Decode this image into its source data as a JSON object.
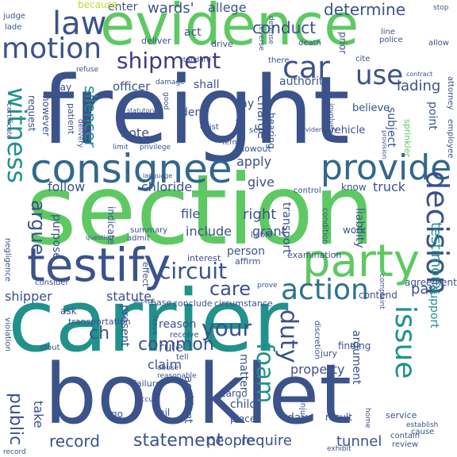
{
  "words": [
    {
      "text": "freight",
      "color": "#3b528b"
    },
    {
      "text": "section",
      "color": "#5ec962"
    },
    {
      "text": "carrier",
      "color": "#21918c"
    },
    {
      "text": "evidence",
      "color": "#5ec962"
    },
    {
      "text": "booklet",
      "color": "#3b528b"
    },
    {
      "text": "consignee",
      "color": "#31688e"
    },
    {
      "text": "testify",
      "color": "#3b528b"
    },
    {
      "text": "party",
      "color": "#5ec962"
    },
    {
      "text": "provide",
      "color": "#31688e"
    },
    {
      "text": "law",
      "color": "#3b528b"
    },
    {
      "text": "motion",
      "color": "#3b528b"
    },
    {
      "text": "shipment",
      "color": "#443983"
    },
    {
      "text": "action",
      "color": "#2c728e"
    },
    {
      "text": "issue",
      "color": "#21918c"
    },
    {
      "text": "decision",
      "color": "#3b528b"
    },
    {
      "text": "witness",
      "color": "#21918c"
    },
    {
      "text": "car",
      "color": "#3b528b"
    },
    {
      "text": "use",
      "color": "#3b528b"
    },
    {
      "text": "circuit",
      "color": "#3b528b"
    },
    {
      "text": "care",
      "color": "#3b528b"
    },
    {
      "text": "your",
      "color": "#3b528b"
    },
    {
      "text": "duty",
      "color": "#3b528b"
    },
    {
      "text": "foam",
      "color": "#21918c"
    },
    {
      "text": "argue",
      "color": "#3b528b"
    },
    {
      "text": "public",
      "color": "#3b528b"
    },
    {
      "text": "common",
      "color": "#3b528b"
    },
    {
      "text": "record",
      "color": "#3b528b"
    },
    {
      "text": "statement",
      "color": "#3b528b"
    },
    {
      "text": "people",
      "color": "#3b528b"
    },
    {
      "text": "require",
      "color": "#3b528b"
    },
    {
      "text": "tunnel",
      "color": "#3b528b"
    },
    {
      "text": "conduct",
      "color": "#3b528b"
    },
    {
      "text": "determine",
      "color": "#3b528b"
    },
    {
      "text": "wards'",
      "color": "#3b528b"
    },
    {
      "text": "allege",
      "color": "#3b528b"
    },
    {
      "text": "enter",
      "color": "#3b528b"
    },
    {
      "text": "because",
      "color": "#bddf26"
    },
    {
      "text": "lading",
      "color": "#3b528b"
    },
    {
      "text": "silencer",
      "color": "#21918c"
    },
    {
      "text": "officer",
      "color": "#3b528b"
    },
    {
      "text": "authority",
      "color": "#3b528b"
    },
    {
      "text": "shall",
      "color": "#3b528b"
    },
    {
      "text": "note",
      "color": "#3b528b"
    },
    {
      "text": "apply",
      "color": "#3b528b"
    },
    {
      "text": "charge",
      "color": "#3b528b"
    },
    {
      "text": "chloride",
      "color": "#3b528b"
    },
    {
      "text": "follow",
      "color": "#3b528b"
    },
    {
      "text": "give",
      "color": "#3b528b"
    },
    {
      "text": "truck",
      "color": "#3b528b"
    },
    {
      "text": "right",
      "color": "#3b528b"
    },
    {
      "text": "file",
      "color": "#3b528b"
    },
    {
      "text": "include",
      "color": "#3b528b"
    },
    {
      "text": "grant",
      "color": "#3b528b"
    },
    {
      "text": "testimony",
      "color": "#21918c"
    },
    {
      "text": "transport",
      "color": "#3b528b"
    },
    {
      "text": "liability",
      "color": "#3b528b"
    },
    {
      "text": "support",
      "color": "#21918c"
    },
    {
      "text": "shipper",
      "color": "#3b528b"
    },
    {
      "text": "statute",
      "color": "#3b528b"
    },
    {
      "text": "rule",
      "color": "#3b528b"
    },
    {
      "text": "claim",
      "color": "#3b528b"
    },
    {
      "text": "ch",
      "color": "#3b528b"
    },
    {
      "text": "property",
      "color": "#3b528b"
    },
    {
      "text": "argument",
      "color": "#3b528b"
    },
    {
      "text": "matter",
      "color": "#3b528b"
    },
    {
      "text": "child",
      "color": "#3b528b"
    },
    {
      "text": "accident",
      "color": "#3b528b"
    },
    {
      "text": "take",
      "color": "#3b528b"
    },
    {
      "text": "present",
      "color": "#3b528b"
    },
    {
      "text": "reason",
      "color": "#3b528b"
    },
    {
      "text": "par",
      "color": "#3b528b"
    },
    {
      "text": "person",
      "color": "#3b528b"
    },
    {
      "text": "purpose",
      "color": "#3b528b"
    },
    {
      "text": "indicate",
      "color": "#3b528b"
    },
    {
      "text": "say",
      "color": "#3b528b"
    },
    {
      "text": "deny",
      "color": "#3b528b"
    },
    {
      "text": "hearing",
      "color": "#3b528b"
    },
    {
      "text": "subject",
      "color": "#3b528b"
    },
    {
      "text": "point",
      "color": "#3b528b"
    },
    {
      "text": "believe",
      "color": "#3b528b"
    },
    {
      "text": "vehicle",
      "color": "#3b528b"
    },
    {
      "text": "know",
      "color": "#3b528b"
    },
    {
      "text": "prior",
      "color": "#3b528b"
    },
    {
      "text": "act",
      "color": "#3b528b"
    },
    {
      "text": "pay",
      "color": "#3b528b"
    },
    {
      "text": "request",
      "color": "#3b528b"
    },
    {
      "text": "however",
      "color": "#3b528b"
    },
    {
      "text": "patient",
      "color": "#3b528b"
    },
    {
      "text": "day",
      "color": "#3b528b"
    },
    {
      "text": "fail",
      "color": "#3b528b"
    },
    {
      "text": "go",
      "color": "#3b528b"
    },
    {
      "text": "place",
      "color": "#3b528b"
    },
    {
      "text": "result",
      "color": "#3b528b"
    },
    {
      "text": "service",
      "color": "#3b528b"
    },
    {
      "text": "finding",
      "color": "#3b528b"
    },
    {
      "text": "jury",
      "color": "#3b528b"
    },
    {
      "text": "cargo",
      "color": "#3b528b"
    },
    {
      "text": "agreement",
      "color": "#3b528b"
    },
    {
      "text": "contend",
      "color": "#3b528b"
    },
    {
      "text": "complaint",
      "color": "#3b528b"
    },
    {
      "text": "work",
      "color": "#3b528b"
    },
    {
      "text": "ask",
      "color": "#3b528b"
    },
    {
      "text": "transportation",
      "color": "#3b528b"
    },
    {
      "text": "stout",
      "color": "#3b528b"
    },
    {
      "text": "consider",
      "color": "#3b528b"
    },
    {
      "text": "negligence",
      "color": "#3b528b"
    },
    {
      "text": "judge",
      "color": "#3b528b"
    },
    {
      "text": "lade",
      "color": "#3b528b"
    },
    {
      "text": "deliver",
      "color": "#3b528b"
    },
    {
      "text": "drive",
      "color": "#3b528b"
    },
    {
      "text": "line",
      "color": "#3b528b"
    },
    {
      "text": "police",
      "color": "#3b528b"
    },
    {
      "text": "allow",
      "color": "#3b528b"
    },
    {
      "text": "cite",
      "color": "#3b528b"
    },
    {
      "text": "there",
      "color": "#3b528b"
    },
    {
      "text": "death",
      "color": "#3b528b"
    },
    {
      "text": "preparer",
      "color": "#3b528b"
    },
    {
      "text": "seek",
      "color": "#3b528b"
    },
    {
      "text": "exist",
      "color": "#3b528b"
    },
    {
      "text": "term",
      "color": "#3b528b"
    },
    {
      "text": "limit",
      "color": "#3b528b"
    },
    {
      "text": "privilege",
      "color": "#3b528b"
    },
    {
      "text": "good",
      "color": "#3b528b"
    },
    {
      "text": "delivery",
      "color": "#3b528b"
    },
    {
      "text": "refuse",
      "color": "#3b528b"
    },
    {
      "text": "certificate",
      "color": "#3b528b"
    },
    {
      "text": "defense",
      "color": "#3b528b"
    },
    {
      "text": "involve",
      "color": "#3b528b"
    },
    {
      "text": "reverse",
      "color": "#3b528b"
    },
    {
      "text": "sprinkler",
      "color": "#5ec962"
    },
    {
      "text": "attorney",
      "color": "#3b528b"
    },
    {
      "text": "employee",
      "color": "#3b528b"
    },
    {
      "text": "stop",
      "color": "#3b528b"
    },
    {
      "text": "blowout",
      "color": "#3b528b"
    },
    {
      "text": "control",
      "color": "#3b528b"
    },
    {
      "text": "summary",
      "color": "#3b528b"
    },
    {
      "text": "admit",
      "color": "#3b528b"
    },
    {
      "text": "effect",
      "color": "#3b528b"
    },
    {
      "text": "affirm",
      "color": "#3b528b"
    },
    {
      "text": "interest",
      "color": "#3b528b"
    },
    {
      "text": "liable",
      "color": "#3b528b"
    },
    {
      "text": "examination",
      "color": "#3b528b"
    },
    {
      "text": "condition",
      "color": "#3b528b"
    },
    {
      "text": "conclude",
      "color": "#3b528b"
    },
    {
      "text": "circumstance",
      "color": "#3b528b"
    },
    {
      "text": "base",
      "color": "#3b528b"
    },
    {
      "text": "prove",
      "color": "#3b528b"
    },
    {
      "text": "receive",
      "color": "#3b528b"
    },
    {
      "text": "tell",
      "color": "#3b528b"
    },
    {
      "text": "discretion",
      "color": "#3b528b"
    },
    {
      "text": "failure",
      "color": "#3b528b"
    },
    {
      "text": "injury",
      "color": "#3b528b"
    },
    {
      "text": "cause",
      "color": "#3b528b"
    },
    {
      "text": "review",
      "color": "#3b528b"
    },
    {
      "text": "contain",
      "color": "#3b528b"
    },
    {
      "text": "home",
      "color": "#3b528b"
    },
    {
      "text": "violation",
      "color": "#3b528b"
    },
    {
      "text": "leave",
      "color": "#3b528b"
    },
    {
      "text": "occur",
      "color": "#3b528b"
    },
    {
      "text": "abuse",
      "color": "#3b528b"
    },
    {
      "text": "reasonable",
      "color": "#3b528b"
    },
    {
      "text": "establish",
      "color": "#3b528b"
    },
    {
      "text": "exhibit",
      "color": "#3b528b"
    },
    {
      "text": "accept",
      "color": "#3b528b"
    },
    {
      "text": "record",
      "color": "#3b528b"
    },
    {
      "text": "standard",
      "color": "#3b528b"
    },
    {
      "text": "damage",
      "color": "#3b528b"
    },
    {
      "text": "contract",
      "color": "#3b528b"
    },
    {
      "text": "statutory",
      "color": "#3b528b"
    },
    {
      "text": "language",
      "color": "#3b528b"
    },
    {
      "text": "provision",
      "color": "#3b528b"
    },
    {
      "text": "evidentiary",
      "color": "#3b528b"
    },
    {
      "text": "question",
      "color": "#3b528b"
    }
  ]
}
